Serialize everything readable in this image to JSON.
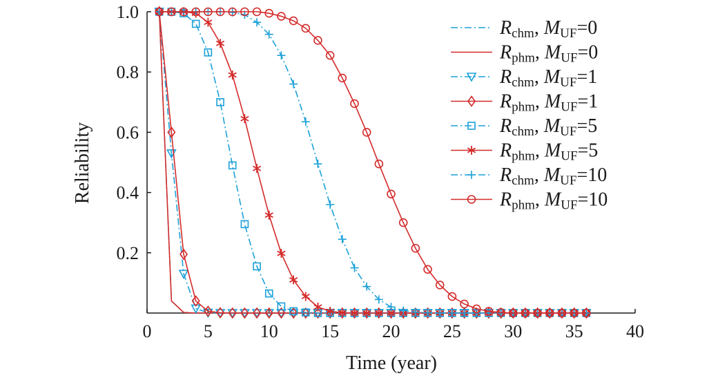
{
  "chart_data": {
    "type": "line",
    "xlabel": "Time (year)",
    "ylabel": "Reliability",
    "xlim": [
      0,
      40
    ],
    "ylim": [
      0,
      1.0
    ],
    "xticks": [
      "0",
      "5",
      "10",
      "15",
      "20",
      "25",
      "30",
      "35",
      "40"
    ],
    "yticks": [
      "0.2",
      "0.4",
      "0.6",
      "0.8",
      "1.0"
    ],
    "grid": false,
    "legend_position": "top-right",
    "x": [
      1,
      2,
      3,
      4,
      5,
      6,
      7,
      8,
      9,
      10,
      11,
      12,
      13,
      14,
      15,
      16,
      17,
      18,
      19,
      20,
      21,
      22,
      23,
      24,
      25,
      26,
      27,
      28,
      29,
      30,
      31,
      32,
      33,
      34,
      35,
      36
    ],
    "series": [
      {
        "name": "Rchm, MUF=0",
        "name_main": "R",
        "name_sub": "chm",
        "name_m": "M",
        "name_msub": "UF",
        "name_val": "=0",
        "color": "#1aa0d8",
        "dash": "dashdot",
        "marker": "none",
        "values": [
          1.0,
          0.04,
          0.002,
          0,
          0,
          0,
          0,
          0,
          0,
          0,
          0,
          0,
          0,
          0,
          0,
          0,
          0,
          0,
          0,
          0,
          0,
          0,
          0,
          0,
          0,
          0,
          0,
          0,
          0,
          0,
          0,
          0,
          0,
          0,
          0,
          0
        ]
      },
      {
        "name": "Rphm, MUF=0",
        "name_main": "R",
        "name_sub": "phm",
        "name_m": "M",
        "name_msub": "UF",
        "name_val": "=0",
        "color": "#d42a2a",
        "dash": "solid",
        "marker": "none",
        "values": [
          1.0,
          0.04,
          0.002,
          0,
          0,
          0,
          0,
          0,
          0,
          0,
          0,
          0,
          0,
          0,
          0,
          0,
          0,
          0,
          0,
          0,
          0,
          0,
          0,
          0,
          0,
          0,
          0,
          0,
          0,
          0,
          0,
          0,
          0,
          0,
          0,
          0
        ]
      },
      {
        "name": "Rchm, MUF=1",
        "name_main": "R",
        "name_sub": "chm",
        "name_m": "M",
        "name_msub": "UF",
        "name_val": "=1",
        "color": "#1aa0d8",
        "dash": "dashdot",
        "marker": "triangle-down",
        "values": [
          1.0,
          0.53,
          0.13,
          0.015,
          0.001,
          0,
          0,
          0,
          0,
          0,
          0,
          0,
          0,
          0,
          0,
          0,
          0,
          0,
          0,
          0,
          0,
          0,
          0,
          0,
          0,
          0,
          0,
          0,
          0,
          0,
          0,
          0,
          0,
          0,
          0,
          0
        ]
      },
      {
        "name": "Rphm, MUF=1",
        "name_main": "R",
        "name_sub": "phm",
        "name_m": "M",
        "name_msub": "UF",
        "name_val": "=1",
        "color": "#d42a2a",
        "dash": "solid",
        "marker": "diamond",
        "values": [
          1.0,
          0.6,
          0.195,
          0.04,
          0.006,
          0.001,
          0,
          0,
          0,
          0,
          0,
          0,
          0,
          0,
          0,
          0,
          0,
          0,
          0,
          0,
          0,
          0,
          0,
          0,
          0,
          0,
          0,
          0,
          0,
          0,
          0,
          0,
          0,
          0,
          0,
          0
        ]
      },
      {
        "name": "Rchm, MUF=5",
        "name_main": "R",
        "name_sub": "chm",
        "name_m": "M",
        "name_msub": "UF",
        "name_val": "=5",
        "color": "#1aa0d8",
        "dash": "dashdot",
        "marker": "square",
        "values": [
          1.0,
          1.0,
          0.995,
          0.96,
          0.865,
          0.7,
          0.49,
          0.295,
          0.155,
          0.065,
          0.022,
          0.006,
          0.002,
          0,
          0,
          0,
          0,
          0,
          0,
          0,
          0,
          0,
          0,
          0,
          0,
          0,
          0,
          0,
          0,
          0,
          0,
          0,
          0,
          0,
          0,
          0
        ]
      },
      {
        "name": "Rphm, MUF=5",
        "name_main": "R",
        "name_sub": "phm",
        "name_m": "M",
        "name_msub": "UF",
        "name_val": "=5",
        "color": "#d42a2a",
        "dash": "solid",
        "marker": "asterisk",
        "values": [
          1.0,
          1.0,
          1.0,
          0.995,
          0.965,
          0.895,
          0.79,
          0.645,
          0.48,
          0.325,
          0.198,
          0.11,
          0.055,
          0.02,
          0.006,
          0.001,
          0,
          0,
          0,
          0,
          0,
          0,
          0,
          0,
          0,
          0,
          0,
          0,
          0,
          0,
          0,
          0,
          0,
          0,
          0,
          0
        ]
      },
      {
        "name": "Rchm, MUF=10",
        "name_main": "R",
        "name_sub": "chm",
        "name_m": "M",
        "name_msub": "UF",
        "name_val": "=10",
        "color": "#1aa0d8",
        "dash": "dashdot",
        "marker": "plus",
        "values": [
          1.0,
          1.0,
          1.0,
          1.0,
          1.0,
          1.0,
          0.998,
          0.99,
          0.965,
          0.925,
          0.855,
          0.76,
          0.635,
          0.495,
          0.36,
          0.245,
          0.15,
          0.088,
          0.045,
          0.02,
          0.008,
          0.003,
          0.001,
          0,
          0,
          0,
          0,
          0,
          0,
          0,
          0,
          0,
          0,
          0,
          0,
          0
        ]
      },
      {
        "name": "Rphm, MUF=10",
        "name_main": "R",
        "name_sub": "phm",
        "name_m": "M",
        "name_msub": "UF",
        "name_val": "=10",
        "color": "#d42a2a",
        "dash": "solid",
        "marker": "circle",
        "values": [
          1.0,
          1.0,
          1.0,
          1.0,
          1.0,
          1.0,
          1.0,
          1.0,
          1.0,
          0.995,
          0.985,
          0.97,
          0.945,
          0.905,
          0.855,
          0.78,
          0.695,
          0.6,
          0.495,
          0.395,
          0.3,
          0.215,
          0.145,
          0.093,
          0.055,
          0.03,
          0.014,
          0.006,
          0.002,
          0,
          0,
          0,
          0,
          0,
          0,
          0
        ]
      }
    ]
  }
}
